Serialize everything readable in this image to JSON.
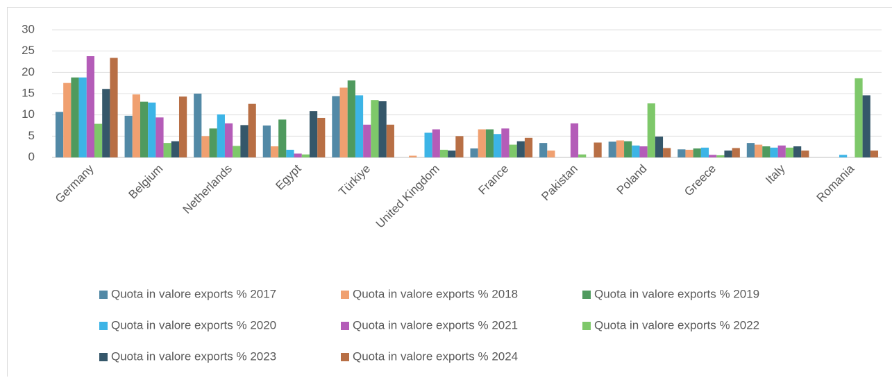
{
  "chart_data": {
    "type": "bar",
    "categories": [
      "Germany",
      "Belgium",
      "Netherlands",
      "Egypt",
      "Türkiye",
      "United Kingdom",
      "France",
      "Pakistan",
      "Poland",
      "Greece",
      "Italy",
      "Romania"
    ],
    "series": [
      {
        "name": "Quota in valore exports % 2017",
        "color": "#5289a6",
        "values": [
          10.7,
          9.8,
          15.0,
          7.5,
          14.4,
          0,
          2.1,
          3.4,
          3.7,
          1.9,
          3.4,
          0
        ]
      },
      {
        "name": "Quota in valore exports % 2018",
        "color": "#f0a070",
        "values": [
          17.5,
          14.8,
          5.0,
          2.6,
          16.4,
          0.4,
          6.6,
          1.6,
          4.0,
          1.8,
          3.0,
          0
        ]
      },
      {
        "name": "Quota in valore exports % 2019",
        "color": "#4f9a5e",
        "values": [
          18.8,
          13.1,
          6.8,
          8.9,
          18.1,
          0,
          6.6,
          0,
          3.8,
          2.1,
          2.6,
          0
        ]
      },
      {
        "name": "Quota in valore exports % 2020",
        "color": "#3cb4e6",
        "values": [
          18.8,
          12.9,
          10.1,
          1.8,
          14.6,
          5.8,
          5.5,
          0,
          2.8,
          2.3,
          2.3,
          0.6
        ]
      },
      {
        "name": "Quota in valore exports % 2021",
        "color": "#b45cb8",
        "values": [
          23.8,
          9.4,
          8.0,
          0.9,
          7.7,
          6.6,
          6.8,
          8.0,
          2.6,
          0.6,
          2.8,
          0
        ]
      },
      {
        "name": "Quota in valore exports % 2022",
        "color": "#7ec86a",
        "values": [
          7.9,
          3.4,
          2.7,
          0.7,
          13.5,
          1.8,
          3.0,
          0.7,
          12.7,
          0.5,
          2.3,
          18.6
        ]
      },
      {
        "name": "Quota in valore exports % 2023",
        "color": "#35576a",
        "values": [
          16.1,
          3.8,
          7.6,
          10.9,
          13.2,
          1.6,
          3.8,
          0,
          4.9,
          1.6,
          2.6,
          14.6
        ]
      },
      {
        "name": "Quota in valore exports % 2024",
        "color": "#b86f45",
        "values": [
          23.4,
          14.3,
          12.6,
          9.3,
          7.7,
          5.0,
          4.6,
          3.5,
          2.2,
          2.2,
          1.6,
          1.6
        ]
      }
    ],
    "ylim": [
      0,
      30
    ],
    "yticks": [
      0,
      5,
      10,
      15,
      20,
      25,
      30
    ],
    "grid": true
  }
}
